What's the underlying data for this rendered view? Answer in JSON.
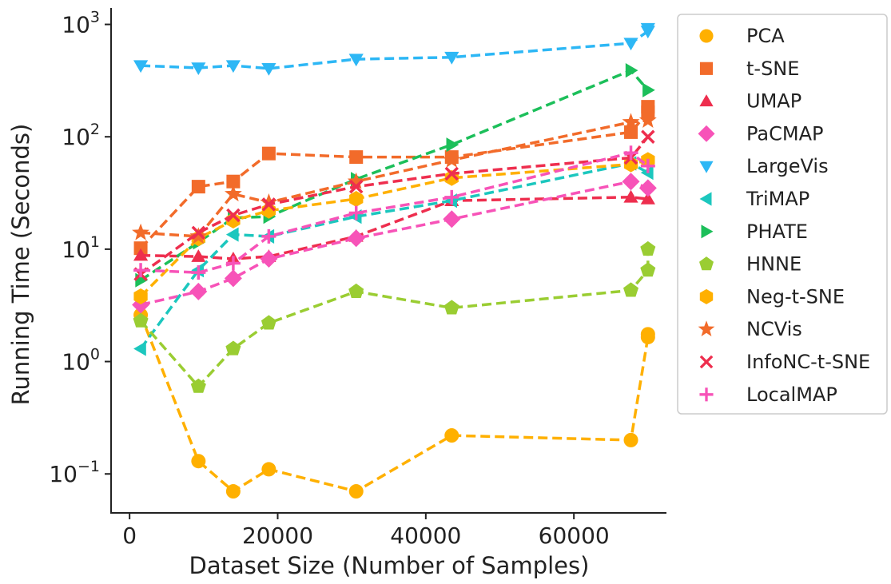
{
  "chart_data": {
    "type": "line",
    "title": "",
    "xlabel": "Dataset Size (Number of Samples)",
    "ylabel": "Running Time (Seconds)",
    "xscale": "linear",
    "yscale": "log",
    "xlim": [
      -2500,
      72500
    ],
    "ylim": [
      0.045,
      1400
    ],
    "xticks": [
      0,
      20000,
      40000,
      60000
    ],
    "xtick_labels": [
      "0",
      "20000",
      "40000",
      "60000"
    ],
    "yticks": [
      0.1,
      1,
      10,
      100,
      1000
    ],
    "ytick_labels": [
      {
        "base": "10",
        "exp": "−1"
      },
      {
        "base": "10",
        "exp": "0"
      },
      {
        "base": "10",
        "exp": "1"
      },
      {
        "base": "10",
        "exp": "2"
      },
      {
        "base": "10",
        "exp": "3"
      }
    ],
    "grid": false,
    "legend_position": "right-outside",
    "x": [
      1500,
      9300,
      14000,
      18800,
      30600,
      43500,
      67700,
      70000
    ],
    "series": [
      {
        "name": "PCA",
        "color": "#FFB000",
        "marker": "circle",
        "values": [
          2.6,
          0.13,
          0.07,
          0.11,
          0.07,
          0.22,
          0.2,
          1.65
        ]
      },
      {
        "name": "t-SNE",
        "color": "#F26B2A",
        "marker": "square",
        "values": [
          10.2,
          36,
          40,
          71,
          66,
          66,
          110,
          165
        ]
      },
      {
        "name": "UMAP",
        "color": "#EE2E4E",
        "marker": "triangle-up",
        "values": [
          8.8,
          8.6,
          8.2,
          8.6,
          13,
          27,
          29,
          28
        ]
      },
      {
        "name": "PaCMAP",
        "color": "#F753B8",
        "marker": "diamond",
        "values": [
          3.2,
          4.2,
          5.5,
          8.2,
          12.5,
          18.5,
          40,
          35
        ]
      },
      {
        "name": "LargeVis",
        "color": "#2DB7F5",
        "marker": "triangle-down",
        "values": [
          430,
          410,
          430,
          405,
          490,
          510,
          680,
          870
        ]
      },
      {
        "name": "TriMAP",
        "color": "#1CC7BE",
        "marker": "triangle-left",
        "values": [
          1.3,
          6.5,
          13.5,
          13,
          19.5,
          27,
          58,
          48
        ]
      },
      {
        "name": "PHATE",
        "color": "#1CBF5A",
        "marker": "triangle-right",
        "values": [
          5.3,
          11.5,
          19,
          19.5,
          42,
          85,
          390,
          260
        ]
      },
      {
        "name": "HNNE",
        "color": "#9ACD32",
        "marker": "pentagon",
        "values": [
          2.3,
          0.6,
          1.3,
          2.2,
          4.2,
          3.0,
          4.3,
          6.5
        ]
      },
      {
        "name": "Neg-t-SNE",
        "color": "#FFB000",
        "marker": "hexagon",
        "values": [
          3.8,
          12.5,
          18,
          22,
          28,
          43,
          57,
          62
        ]
      },
      {
        "name": "NCVis",
        "color": "#F26B2A",
        "marker": "star",
        "values": [
          14,
          13,
          31,
          26,
          40,
          62,
          135,
          140
        ]
      },
      {
        "name": "InfoNC-t-SNE",
        "color": "#EE2E4E",
        "marker": "x",
        "values": [
          6.0,
          14,
          20,
          25,
          36,
          47,
          65,
          100
        ]
      },
      {
        "name": "LocalMAP",
        "color": "#F753B8",
        "marker": "plus",
        "values": [
          6.5,
          6.2,
          7.5,
          13,
          21,
          29,
          72,
          55
        ]
      }
    ],
    "extra_points": [
      {
        "series": "PCA",
        "x": 70000,
        "y": 1.75
      },
      {
        "series": "HNNE",
        "x": 70000,
        "y": 10
      },
      {
        "series": "LargeVis",
        "x": 70000,
        "y": 920
      },
      {
        "series": "t-SNE",
        "x": 70000,
        "y": 185
      }
    ]
  }
}
